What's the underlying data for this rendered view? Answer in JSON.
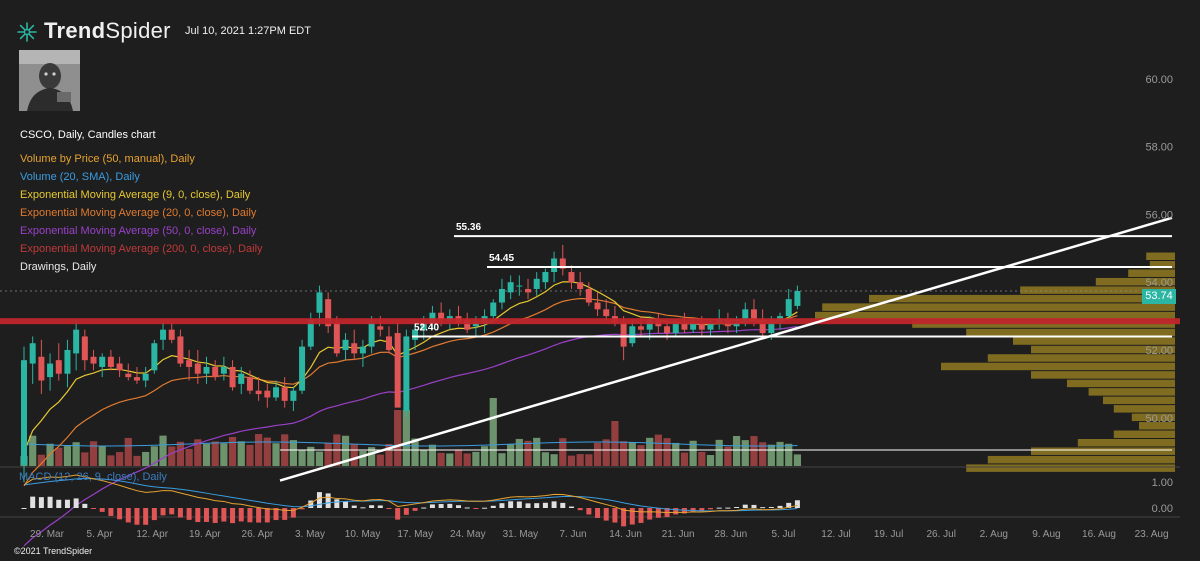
{
  "header": {
    "logo_bold": "Trend",
    "logo_light": "Spider",
    "timestamp": "Jul 10, 2021 1:27PM EDT"
  },
  "legend": {
    "chart": "CSCO, Daily, Candles chart",
    "vbp": "Volume by Price (50, manual), Daily",
    "volume": "Volume (20, SMA), Daily",
    "ema9": "Exponential Moving Average (9, 0, close), Daily",
    "ema20": "Exponential Moving Average (20, 0, close), Daily",
    "ema50": "Exponential Moving Average (50, 0, close), Daily",
    "ema200": "Exponential Moving Average (200, 0, close), Daily",
    "drawings": "Drawings, Daily"
  },
  "macd_label": "MACD (12, 26, 9, close), Daily",
  "copyright": "©2021 TrendSpider",
  "price_tag": "53.74",
  "colors": {
    "background": "#1e1e1e",
    "bull": "#2bb5a3",
    "bear": "#e05555",
    "vbp": "#8a7420",
    "support_red": "#c0262c",
    "ema9": "#e8c830",
    "ema20": "#e07a30",
    "ema50": "#9a40c8",
    "macd_line": "#e8a330",
    "signal_line": "#3a9de0"
  },
  "chart_data": {
    "type": "candlestick",
    "ticker": "CSCO",
    "timeframe": "Daily",
    "y_axis": {
      "ticks": [
        "60.00",
        "58.00",
        "56.00",
        "54.00",
        "52.00",
        "50.00"
      ],
      "range": [
        47.5,
        61.5
      ]
    },
    "x_axis_labels": [
      "29. Mar",
      "5. Apr",
      "12. Apr",
      "19. Apr",
      "26. Apr",
      "3. May",
      "10. May",
      "17. May",
      "24. May",
      "31. May",
      "7. Jun",
      "14. Jun",
      "21. Jun",
      "28. Jun",
      "5. Jul",
      "12. Jul",
      "19. Jul",
      "26. Jul",
      "2. Aug",
      "9. Aug",
      "16. Aug",
      "23. Aug"
    ],
    "candles": [
      {
        "o": 48.6,
        "h": 52.1,
        "l": 48.1,
        "c": 51.7
      },
      {
        "o": 51.6,
        "h": 52.4,
        "l": 51.0,
        "c": 52.2
      },
      {
        "o": 51.8,
        "h": 52.3,
        "l": 50.7,
        "c": 51.1
      },
      {
        "o": 51.2,
        "h": 51.9,
        "l": 50.8,
        "c": 51.6
      },
      {
        "o": 51.7,
        "h": 52.2,
        "l": 51.1,
        "c": 51.3
      },
      {
        "o": 51.3,
        "h": 52.3,
        "l": 50.9,
        "c": 52.0
      },
      {
        "o": 51.9,
        "h": 52.9,
        "l": 51.4,
        "c": 52.6
      },
      {
        "o": 52.4,
        "h": 52.6,
        "l": 51.4,
        "c": 51.7
      },
      {
        "o": 51.8,
        "h": 52.0,
        "l": 51.4,
        "c": 51.6
      },
      {
        "o": 51.5,
        "h": 51.9,
        "l": 51.2,
        "c": 51.8
      },
      {
        "o": 51.8,
        "h": 52.0,
        "l": 51.4,
        "c": 51.5
      },
      {
        "o": 51.6,
        "h": 51.8,
        "l": 51.2,
        "c": 51.4
      },
      {
        "o": 51.3,
        "h": 51.6,
        "l": 51.1,
        "c": 51.2
      },
      {
        "o": 51.2,
        "h": 51.5,
        "l": 51.0,
        "c": 51.1
      },
      {
        "o": 51.1,
        "h": 51.5,
        "l": 50.9,
        "c": 51.3
      },
      {
        "o": 51.4,
        "h": 52.3,
        "l": 51.3,
        "c": 52.2
      },
      {
        "o": 52.3,
        "h": 52.9,
        "l": 52.0,
        "c": 52.6
      },
      {
        "o": 52.6,
        "h": 52.8,
        "l": 52.2,
        "c": 52.3
      },
      {
        "o": 52.4,
        "h": 52.6,
        "l": 51.5,
        "c": 51.6
      },
      {
        "o": 51.7,
        "h": 52.0,
        "l": 51.1,
        "c": 51.5
      },
      {
        "o": 51.6,
        "h": 52.0,
        "l": 51.0,
        "c": 51.3
      },
      {
        "o": 51.3,
        "h": 51.8,
        "l": 51.0,
        "c": 51.5
      },
      {
        "o": 51.5,
        "h": 51.7,
        "l": 51.1,
        "c": 51.2
      },
      {
        "o": 51.3,
        "h": 51.8,
        "l": 51.1,
        "c": 51.5
      },
      {
        "o": 51.5,
        "h": 51.7,
        "l": 50.8,
        "c": 50.9
      },
      {
        "o": 51.0,
        "h": 51.5,
        "l": 50.7,
        "c": 51.3
      },
      {
        "o": 51.2,
        "h": 51.4,
        "l": 50.7,
        "c": 50.8
      },
      {
        "o": 50.8,
        "h": 51.2,
        "l": 50.5,
        "c": 50.7
      },
      {
        "o": 50.8,
        "h": 51.0,
        "l": 50.3,
        "c": 50.6
      },
      {
        "o": 50.6,
        "h": 51.1,
        "l": 50.5,
        "c": 50.9
      },
      {
        "o": 50.9,
        "h": 51.2,
        "l": 50.3,
        "c": 50.5
      },
      {
        "o": 50.5,
        "h": 50.9,
        "l": 50.2,
        "c": 50.8
      },
      {
        "o": 50.8,
        "h": 52.3,
        "l": 50.7,
        "c": 52.1
      },
      {
        "o": 52.1,
        "h": 53.1,
        "l": 52.0,
        "c": 52.9
      },
      {
        "o": 53.1,
        "h": 53.9,
        "l": 52.7,
        "c": 53.7
      },
      {
        "o": 53.5,
        "h": 53.7,
        "l": 52.5,
        "c": 52.7
      },
      {
        "o": 52.8,
        "h": 53.0,
        "l": 51.8,
        "c": 51.9
      },
      {
        "o": 52.0,
        "h": 52.5,
        "l": 51.7,
        "c": 52.3
      },
      {
        "o": 52.2,
        "h": 52.6,
        "l": 51.7,
        "c": 51.9
      },
      {
        "o": 51.9,
        "h": 52.3,
        "l": 51.5,
        "c": 52.1
      },
      {
        "o": 52.1,
        "h": 53.0,
        "l": 51.9,
        "c": 52.8
      },
      {
        "o": 52.7,
        "h": 53.0,
        "l": 52.4,
        "c": 52.6
      },
      {
        "o": 52.4,
        "h": 52.7,
        "l": 51.9,
        "c": 52.0
      },
      {
        "o": 52.5,
        "h": 52.9,
        "l": 50.4,
        "c": 50.3
      },
      {
        "o": 50.2,
        "h": 52.6,
        "l": 50.0,
        "c": 52.4
      },
      {
        "o": 52.3,
        "h": 52.8,
        "l": 52.0,
        "c": 52.6
      },
      {
        "o": 52.6,
        "h": 53.0,
        "l": 52.3,
        "c": 52.8
      },
      {
        "o": 52.8,
        "h": 53.3,
        "l": 52.6,
        "c": 53.1
      },
      {
        "o": 53.1,
        "h": 53.4,
        "l": 52.7,
        "c": 52.9
      },
      {
        "o": 52.9,
        "h": 53.2,
        "l": 52.6,
        "c": 53.0
      },
      {
        "o": 53.0,
        "h": 53.3,
        "l": 52.7,
        "c": 52.8
      },
      {
        "o": 52.9,
        "h": 53.1,
        "l": 52.5,
        "c": 52.6
      },
      {
        "o": 52.7,
        "h": 53.0,
        "l": 52.4,
        "c": 52.8
      },
      {
        "o": 52.8,
        "h": 53.2,
        "l": 52.5,
        "c": 53.0
      },
      {
        "o": 53.0,
        "h": 53.5,
        "l": 52.8,
        "c": 53.4
      },
      {
        "o": 53.4,
        "h": 54.1,
        "l": 53.2,
        "c": 53.8
      },
      {
        "o": 53.7,
        "h": 54.2,
        "l": 53.5,
        "c": 54.0
      },
      {
        "o": 53.9,
        "h": 54.2,
        "l": 53.6,
        "c": 53.9
      },
      {
        "o": 53.8,
        "h": 54.1,
        "l": 53.5,
        "c": 53.7
      },
      {
        "o": 53.8,
        "h": 54.3,
        "l": 53.6,
        "c": 54.1
      },
      {
        "o": 54.0,
        "h": 54.4,
        "l": 53.8,
        "c": 54.3
      },
      {
        "o": 54.3,
        "h": 54.9,
        "l": 54.0,
        "c": 54.7
      },
      {
        "o": 54.7,
        "h": 55.1,
        "l": 54.2,
        "c": 54.4
      },
      {
        "o": 54.3,
        "h": 54.5,
        "l": 53.8,
        "c": 54.0
      },
      {
        "o": 54.0,
        "h": 54.3,
        "l": 53.6,
        "c": 53.8
      },
      {
        "o": 53.8,
        "h": 54.0,
        "l": 53.3,
        "c": 53.4
      },
      {
        "o": 53.4,
        "h": 53.7,
        "l": 53.0,
        "c": 53.2
      },
      {
        "o": 53.2,
        "h": 53.5,
        "l": 52.9,
        "c": 53.0
      },
      {
        "o": 53.0,
        "h": 53.3,
        "l": 52.7,
        "c": 52.8
      },
      {
        "o": 52.8,
        "h": 53.0,
        "l": 51.7,
        "c": 52.1
      },
      {
        "o": 52.2,
        "h": 52.9,
        "l": 52.1,
        "c": 52.7
      },
      {
        "o": 52.7,
        "h": 53.0,
        "l": 52.4,
        "c": 52.6
      },
      {
        "o": 52.6,
        "h": 53.0,
        "l": 52.3,
        "c": 52.9
      },
      {
        "o": 52.9,
        "h": 53.1,
        "l": 52.5,
        "c": 52.7
      },
      {
        "o": 52.7,
        "h": 52.9,
        "l": 52.3,
        "c": 52.5
      },
      {
        "o": 52.5,
        "h": 52.9,
        "l": 52.4,
        "c": 52.8
      },
      {
        "o": 52.8,
        "h": 53.1,
        "l": 52.5,
        "c": 52.6
      },
      {
        "o": 52.6,
        "h": 52.9,
        "l": 52.5,
        "c": 52.8
      },
      {
        "o": 52.8,
        "h": 53.0,
        "l": 52.4,
        "c": 52.6
      },
      {
        "o": 52.6,
        "h": 52.9,
        "l": 52.4,
        "c": 52.8
      },
      {
        "o": 52.8,
        "h": 53.2,
        "l": 52.6,
        "c": 52.9
      },
      {
        "o": 52.9,
        "h": 53.1,
        "l": 52.5,
        "c": 52.7
      },
      {
        "o": 52.7,
        "h": 53.0,
        "l": 52.5,
        "c": 52.8
      },
      {
        "o": 52.8,
        "h": 53.4,
        "l": 52.7,
        "c": 53.2
      },
      {
        "o": 53.2,
        "h": 53.5,
        "l": 52.7,
        "c": 52.9
      },
      {
        "o": 52.9,
        "h": 53.2,
        "l": 52.4,
        "c": 52.5
      },
      {
        "o": 52.5,
        "h": 53.0,
        "l": 52.3,
        "c": 52.8
      },
      {
        "o": 52.8,
        "h": 53.1,
        "l": 52.6,
        "c": 53.0
      },
      {
        "o": 53.0,
        "h": 53.8,
        "l": 52.9,
        "c": 53.5
      },
      {
        "o": 53.3,
        "h": 53.9,
        "l": 53.2,
        "c": 53.74
      }
    ],
    "volume_profile": [
      {
        "p": 54.75,
        "v": 0.08
      },
      {
        "p": 54.5,
        "v": 0.07
      },
      {
        "p": 54.25,
        "v": 0.13
      },
      {
        "p": 54.0,
        "v": 0.22
      },
      {
        "p": 53.75,
        "v": 0.43
      },
      {
        "p": 53.5,
        "v": 0.85
      },
      {
        "p": 53.25,
        "v": 0.98
      },
      {
        "p": 53.0,
        "v": 1.0
      },
      {
        "p": 52.75,
        "v": 0.73
      },
      {
        "p": 52.5,
        "v": 0.58
      },
      {
        "p": 52.25,
        "v": 0.45
      },
      {
        "p": 52.0,
        "v": 0.4
      },
      {
        "p": 51.75,
        "v": 0.52
      },
      {
        "p": 51.5,
        "v": 0.65
      },
      {
        "p": 51.25,
        "v": 0.4
      },
      {
        "p": 51.0,
        "v": 0.3
      },
      {
        "p": 50.75,
        "v": 0.24
      },
      {
        "p": 50.5,
        "v": 0.2
      },
      {
        "p": 50.25,
        "v": 0.17
      },
      {
        "p": 50.0,
        "v": 0.12
      },
      {
        "p": 49.75,
        "v": 0.1
      },
      {
        "p": 49.5,
        "v": 0.17
      },
      {
        "p": 49.25,
        "v": 0.27
      },
      {
        "p": 49.0,
        "v": 0.4
      },
      {
        "p": 48.75,
        "v": 0.52
      },
      {
        "p": 48.5,
        "v": 0.58
      }
    ],
    "horizontal_levels": [
      {
        "price": 55.36,
        "label": "55.36",
        "color": "#ffffff"
      },
      {
        "price": 54.45,
        "label": "54.45",
        "color": "#ffffff"
      },
      {
        "price": 52.4,
        "label": "52.40",
        "color": "#ffffff"
      },
      {
        "price": 52.85,
        "label": "",
        "color": "#c0262c"
      }
    ],
    "trendline": {
      "start_price": 48.15,
      "end_price": 55.9
    },
    "current_price": 53.74,
    "macd_axis": {
      "ticks": [
        "1.00",
        "0.00"
      ]
    }
  }
}
